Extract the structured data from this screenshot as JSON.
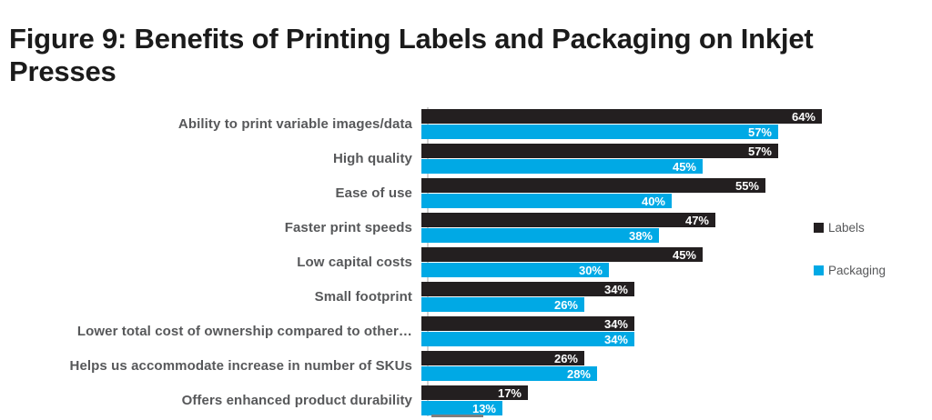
{
  "chart_data": {
    "type": "bar",
    "orientation": "horizontal",
    "title": "Figure 9: Benefits of Printing Labels and Packaging on Inkjet Presses",
    "categories": [
      "Ability to print variable images/data",
      "High quality",
      "Ease of use",
      "Faster print speeds",
      "Low capital costs",
      "Small footprint",
      "Lower total cost of ownership compared to other…",
      "Helps us accommodate increase in number of SKUs",
      "Offers enhanced product durability"
    ],
    "series": [
      {
        "name": "Labels",
        "color": "#231f20",
        "values": [
          64,
          57,
          55,
          47,
          45,
          34,
          34,
          26,
          17
        ]
      },
      {
        "name": "Packaging",
        "color": "#00a9e5",
        "values": [
          57,
          45,
          40,
          38,
          30,
          26,
          34,
          28,
          13
        ]
      }
    ],
    "value_suffix": "%",
    "value_labels": "inside-end",
    "xlim": [
      0,
      100
    ],
    "grid": false,
    "legend_position": "right",
    "colors": {
      "category_text": "#57585a",
      "value_text": "#ffffff",
      "axis_line": "#d2d2d2"
    }
  }
}
